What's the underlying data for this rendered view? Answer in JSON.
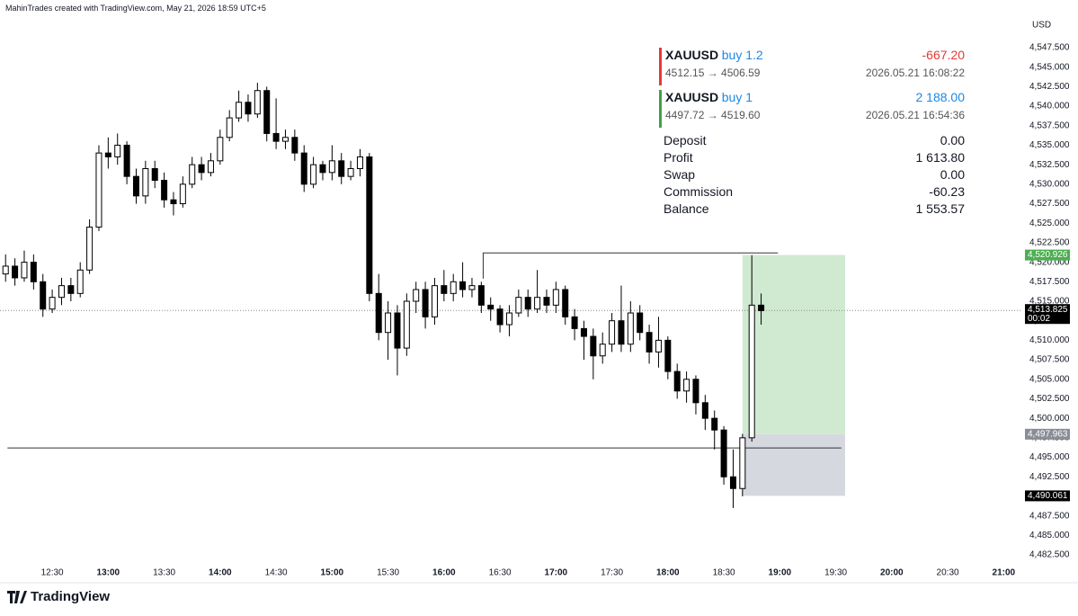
{
  "header": "MahinTrades created with TradingView.com, May 21, 2026 18:59 UTC+5",
  "footer": "TradingView",
  "chart_data": {
    "type": "candlestick",
    "currency": "USD",
    "x": [
      "12:05",
      "12:10",
      "12:15",
      "12:20",
      "12:25",
      "12:30",
      "12:35",
      "12:40",
      "12:45",
      "12:50",
      "12:55",
      "13:00",
      "13:05",
      "13:10",
      "13:15",
      "13:20",
      "13:25",
      "13:30",
      "13:35",
      "13:40",
      "13:45",
      "13:50",
      "13:55",
      "14:00",
      "14:05",
      "14:10",
      "14:15",
      "14:20",
      "14:25",
      "14:30",
      "14:35",
      "14:40",
      "14:45",
      "14:50",
      "14:55",
      "15:00",
      "15:05",
      "15:10",
      "15:15",
      "15:20",
      "15:25",
      "15:30",
      "15:35",
      "15:40",
      "15:45",
      "15:50",
      "15:55",
      "16:00",
      "16:05",
      "16:10",
      "16:15",
      "16:20",
      "16:25",
      "16:30",
      "16:35",
      "16:40",
      "16:45",
      "16:50",
      "16:55",
      "17:00",
      "17:05",
      "17:10",
      "17:15",
      "17:20",
      "17:25",
      "17:30",
      "17:35",
      "17:40",
      "17:45",
      "17:50",
      "17:55",
      "18:00",
      "18:05",
      "18:10",
      "18:15",
      "18:20",
      "18:25",
      "18:30",
      "18:35",
      "18:40",
      "18:45",
      "18:50"
    ],
    "open": [
      4518.5,
      4519.5,
      4518.0,
      4520.0,
      4517.5,
      4514.0,
      4515.5,
      4517.0,
      4516.0,
      4519.0,
      4524.5,
      4534.0,
      4533.5,
      4535.0,
      4531.0,
      4528.5,
      4532.0,
      4530.5,
      4528.0,
      4527.5,
      4530.0,
      4532.5,
      4531.5,
      4533.0,
      4536.0,
      4538.5,
      4540.5,
      4539.0,
      4542.0,
      4536.5,
      4535.5,
      4536.0,
      4534.0,
      4530.0,
      4532.5,
      4531.5,
      4533.0,
      4531.0,
      4532.0,
      4533.5,
      4516.0,
      4511.0,
      4513.5,
      4509.0,
      4515.0,
      4516.5,
      4513.0,
      4517.0,
      4516.0,
      4517.5,
      4516.5,
      4517.0,
      4514.5,
      4514.0,
      4512.0,
      4513.5,
      4515.5,
      4514.0,
      4515.5,
      4514.5,
      4516.5,
      4513.0,
      4511.5,
      4510.5,
      4508.0,
      4509.5,
      4512.5,
      4509.5,
      4513.5,
      4511.0,
      4508.5,
      4510.0,
      4506.0,
      4503.5,
      4505.0,
      4502.0,
      4500.0,
      4498.5,
      4492.5,
      4491.0,
      4497.5,
      4514.5
    ],
    "high": [
      4521.0,
      4520.5,
      4521.5,
      4521.0,
      4518.5,
      4516.5,
      4518.0,
      4518.0,
      4520.0,
      4525.5,
      4535.0,
      4536.0,
      4536.5,
      4535.5,
      4532.0,
      4533.0,
      4533.0,
      4531.5,
      4529.0,
      4531.0,
      4533.5,
      4533.5,
      4534.0,
      4537.0,
      4539.5,
      4542.0,
      4541.5,
      4543.0,
      4542.5,
      4541.0,
      4537.0,
      4537.0,
      4535.0,
      4533.5,
      4533.0,
      4535.0,
      4534.0,
      4533.0,
      4534.5,
      4534.0,
      4518.5,
      4515.0,
      4514.5,
      4516.0,
      4517.5,
      4517.5,
      4518.0,
      4519.0,
      4518.5,
      4520.0,
      4518.0,
      4517.5,
      4515.5,
      4514.5,
      4514.5,
      4516.5,
      4516.5,
      4519.0,
      4516.5,
      4517.5,
      4517.0,
      4514.0,
      4512.5,
      4511.5,
      4511.0,
      4513.5,
      4517.0,
      4515.0,
      4514.5,
      4512.0,
      4513.0,
      4510.5,
      4507.0,
      4506.0,
      4505.5,
      4503.0,
      4501.0,
      4499.0,
      4496.0,
      4498.0,
      4520.9,
      4516.0
    ],
    "low": [
      4517.5,
      4517.0,
      4517.5,
      4516.5,
      4513.0,
      4513.5,
      4514.5,
      4515.0,
      4515.5,
      4518.5,
      4524.0,
      4532.0,
      4532.5,
      4530.0,
      4527.5,
      4527.5,
      4529.5,
      4527.0,
      4526.0,
      4527.0,
      4529.5,
      4530.5,
      4531.0,
      4532.5,
      4535.5,
      4538.0,
      4538.0,
      4538.5,
      4535.5,
      4534.5,
      4534.5,
      4533.0,
      4529.0,
      4529.5,
      4530.5,
      4530.5,
      4530.0,
      4530.5,
      4531.0,
      4515.0,
      4510.0,
      4507.5,
      4505.5,
      4508.0,
      4513.5,
      4511.5,
      4512.0,
      4515.0,
      4515.0,
      4515.5,
      4515.5,
      4513.5,
      4512.5,
      4511.0,
      4510.5,
      4513.0,
      4513.0,
      4513.5,
      4513.5,
      4513.5,
      4512.0,
      4510.0,
      4507.5,
      4505.0,
      4507.0,
      4508.5,
      4508.5,
      4508.5,
      4510.0,
      4507.0,
      4506.5,
      4505.0,
      4502.5,
      4502.0,
      4500.5,
      4498.5,
      4496.0,
      4491.5,
      4488.5,
      4490.0,
      4497.0,
      4512.0
    ],
    "close": [
      4519.5,
      4518.0,
      4520.0,
      4517.5,
      4514.0,
      4515.5,
      4517.0,
      4516.0,
      4519.0,
      4524.5,
      4534.0,
      4533.5,
      4535.0,
      4531.0,
      4528.5,
      4532.0,
      4530.5,
      4528.0,
      4527.5,
      4530.0,
      4532.5,
      4531.5,
      4533.0,
      4536.0,
      4538.5,
      4540.5,
      4539.0,
      4542.0,
      4536.5,
      4535.5,
      4536.0,
      4534.0,
      4530.0,
      4532.5,
      4531.5,
      4533.0,
      4531.0,
      4532.0,
      4533.5,
      4516.0,
      4511.0,
      4513.5,
      4509.0,
      4515.0,
      4516.5,
      4513.0,
      4517.0,
      4516.0,
      4517.5,
      4516.5,
      4517.0,
      4514.5,
      4514.0,
      4512.0,
      4513.5,
      4515.5,
      4514.0,
      4515.5,
      4514.5,
      4516.5,
      4513.0,
      4511.5,
      4510.5,
      4508.0,
      4509.5,
      4512.5,
      4509.5,
      4513.5,
      4511.0,
      4508.5,
      4510.0,
      4506.0,
      4503.5,
      4505.0,
      4502.0,
      4500.0,
      4498.5,
      4492.5,
      4491.0,
      4497.5,
      4514.5,
      4513.8
    ],
    "up_color": "#ffffff",
    "down_color": "#000000",
    "xlim": [
      "12:02",
      "21:09"
    ],
    "xticks": [
      "12:30",
      "13:00",
      "13:30",
      "14:00",
      "14:30",
      "15:00",
      "15:30",
      "16:00",
      "16:30",
      "17:00",
      "17:30",
      "18:00",
      "18:30",
      "19:00",
      "19:30",
      "20:00",
      "20:30",
      "21:00"
    ],
    "ylim": [
      4482.5,
      4547.5
    ],
    "yticks": [
      {
        "value": 4482.5,
        "label": "4,482.500"
      },
      {
        "value": 4485,
        "label": "4,485.000"
      },
      {
        "value": 4487.5,
        "label": "4,487.500"
      },
      {
        "value": 4490,
        "label": "4,490.000"
      },
      {
        "value": 4492.5,
        "label": "4,492.500"
      },
      {
        "value": 4495,
        "label": "4,495.000"
      },
      {
        "value": 4497.5,
        "label": "4,497.500"
      },
      {
        "value": 4500,
        "label": "4,500.000"
      },
      {
        "value": 4502.5,
        "label": "4,502.500"
      },
      {
        "value": 4505,
        "label": "4,505.000"
      },
      {
        "value": 4507.5,
        "label": "4,507.500"
      },
      {
        "value": 4510,
        "label": "4,510.000"
      },
      {
        "value": 4512.5,
        "label": "4,512.500"
      },
      {
        "value": 4515,
        "label": "4,515.000"
      },
      {
        "value": 4517.5,
        "label": "4,517.500"
      },
      {
        "value": 4520,
        "label": "4,520.000"
      },
      {
        "value": 4522.5,
        "label": "4,522.500"
      },
      {
        "value": 4525,
        "label": "4,525.000"
      },
      {
        "value": 4527.5,
        "label": "4,527.500"
      },
      {
        "value": 4530,
        "label": "4,530.000"
      },
      {
        "value": 4532.5,
        "label": "4,532.500"
      },
      {
        "value": 4535,
        "label": "4,535.000"
      },
      {
        "value": 4537.5,
        "label": "4,537.500"
      },
      {
        "value": 4540,
        "label": "4,540.000"
      },
      {
        "value": 4542.5,
        "label": "4,542.500"
      },
      {
        "value": 4545,
        "label": "4,545.000"
      },
      {
        "value": 4547.5,
        "label": "4,547.500"
      }
    ],
    "grid": false,
    "position": {
      "target": 4520.926,
      "entry": 4497.963,
      "stop": 4490.061,
      "start": "18:40",
      "end": "19:35",
      "profit_color": "#c8e6c9",
      "loss_color": "#d1d4dc"
    },
    "current_price": {
      "value": 4513.825,
      "label": "4,513.825",
      "timer": "00:02",
      "color": "#000000"
    },
    "price_labels": [
      {
        "value": 4520.926,
        "label": "4,520.926",
        "color": "#4caf50"
      },
      {
        "value": 4497.963,
        "label": "4,497.963",
        "color": "#8a8d96"
      },
      {
        "value": 4490.061,
        "label": "4,490.061",
        "color": "#000000"
      }
    ],
    "lines": [
      {
        "x": [
          "12:06",
          "19:33"
        ],
        "y": [
          4496.2,
          4496.2
        ]
      },
      {
        "x": [
          "16:21",
          "16:21",
          "18:59"
        ],
        "y": [
          4517.9,
          4521.2,
          4521.2
        ]
      }
    ]
  },
  "trades": [
    {
      "symbol": "XAUUSD",
      "side": "buy 1.2",
      "pnl": "-667.20",
      "prices": "4512.15 → 4506.59",
      "time": "2026.05.21 16:08:22",
      "bar_color": "#e53935",
      "pnl_color": "#e53935"
    },
    {
      "symbol": "XAUUSD",
      "side": "buy 1",
      "pnl": "2 188.00",
      "prices": "4497.72 → 4519.60",
      "time": "2026.05.21 16:54:36",
      "bar_color": "#43a047",
      "pnl_color": "#1e88e5"
    }
  ],
  "summary": [
    [
      "Deposit",
      "0.00"
    ],
    [
      "Profit",
      "1 613.80"
    ],
    [
      "Swap",
      "0.00"
    ],
    [
      "Commission",
      "-60.23"
    ],
    [
      "Balance",
      "1 553.57"
    ]
  ]
}
